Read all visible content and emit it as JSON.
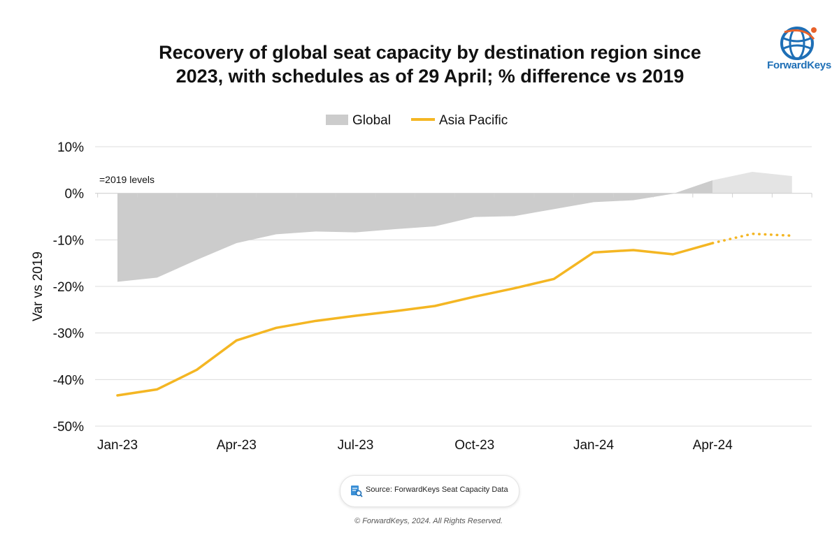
{
  "title_lines": [
    "Recovery of global seat capacity by destination region since",
    "2023, with schedules as of 29 April; % difference vs 2019"
  ],
  "brand": {
    "name": "ForwardKeys"
  },
  "source": "Source: ForwardKeys Seat Capacity Data",
  "copyright": "© ForwardKeys, 2024. All Rights Reserved.",
  "colors": {
    "global_actual": "#cccccc",
    "global_forecast": "#e4e4e4",
    "asia_pacific": "#f4b623",
    "grid": "#dcdcdc",
    "brand_blue": "#1e6fb6",
    "brand_orange": "#e8622a"
  },
  "chart_data": {
    "type": "area",
    "title": "Recovery of global seat capacity by destination region since 2023, with schedules as of 29 April; % difference vs 2019",
    "ylabel": "Var vs 2019",
    "xlabel": "",
    "ylim": [
      -50,
      10
    ],
    "yticks": [
      10,
      0,
      -10,
      -20,
      -30,
      -40,
      -50
    ],
    "ytick_labels": [
      "10%",
      "0%",
      "-10%",
      "-20%",
      "-30%",
      "-40%",
      "-50%"
    ],
    "x_tick_labels": [
      "Jan-23",
      "Apr-23",
      "Jul-23",
      "Oct-23",
      "Jan-24",
      "Apr-24"
    ],
    "x_tick_indices": [
      0,
      3,
      6,
      9,
      12,
      15
    ],
    "categories": [
      "Jan-23",
      "Feb-23",
      "Mar-23",
      "Apr-23",
      "May-23",
      "Jun-23",
      "Jul-23",
      "Aug-23",
      "Sep-23",
      "Oct-23",
      "Nov-23",
      "Dec-23",
      "Jan-24",
      "Feb-24",
      "Mar-24",
      "Apr-24",
      "May-24",
      "Jun-24"
    ],
    "annotation": "=2019 levels",
    "legend": [
      "Global",
      "Asia Pacific"
    ],
    "legend_position": "top",
    "forecast_start_index": 15,
    "series": [
      {
        "name": "Global",
        "style": "area",
        "values": [
          -19.0,
          -18.1,
          -14.3,
          -10.7,
          -8.8,
          -8.2,
          -8.4,
          -7.7,
          -7.1,
          -5.1,
          -4.9,
          -3.4,
          -1.9,
          -1.5,
          -0.1,
          2.8,
          4.6,
          3.7
        ]
      },
      {
        "name": "Asia Pacific",
        "style": "line",
        "values": [
          -43.4,
          -42.1,
          -37.9,
          -31.6,
          -28.9,
          -27.4,
          -26.3,
          -25.3,
          -24.2,
          -22.2,
          -20.4,
          -18.4,
          -12.7,
          -12.2,
          -13.1,
          -10.7,
          -8.7,
          -9.1
        ]
      }
    ]
  }
}
